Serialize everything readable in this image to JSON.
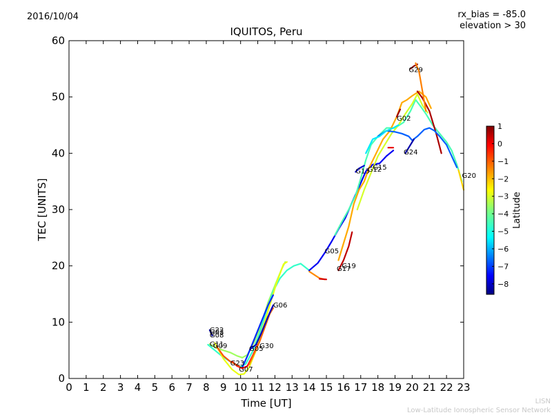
{
  "header": {
    "date": "2016/10/04",
    "title": "IQUITOS, Peru",
    "rx_bias": "rx_bias = -85.0",
    "elevation": "elevation > 30"
  },
  "footer": {
    "credit_short": "LISN",
    "credit_long": "Low-Latitude Ionospheric Sensor Network"
  },
  "colorbar": {
    "label": "Latitude",
    "ticks": [
      "1",
      "0",
      "−1",
      "−2",
      "−3",
      "−4",
      "−5",
      "−6",
      "−7",
      "−8"
    ],
    "range": [
      -8.6,
      1
    ],
    "colormap": "jet"
  },
  "chart_data": {
    "type": "scatter",
    "title": "IQUITOS, Peru",
    "xlabel": "Time [UT]",
    "ylabel": "TEC [UNITS]",
    "xlim": [
      0,
      23
    ],
    "ylim": [
      0,
      60
    ],
    "xticks": [
      "0",
      "1",
      "2",
      "3",
      "4",
      "5",
      "6",
      "7",
      "8",
      "9",
      "10",
      "11",
      "12",
      "13",
      "14",
      "15",
      "16",
      "17",
      "18",
      "19",
      "20",
      "21",
      "22",
      "23"
    ],
    "yticks": [
      "0",
      "10",
      "20",
      "30",
      "40",
      "50",
      "60"
    ],
    "grid": false,
    "satellite_labels": [
      {
        "text": "G22",
        "x": 8.2,
        "y": 8.7
      },
      {
        "text": "G03",
        "x": 8.2,
        "y": 8.3
      },
      {
        "text": "G08",
        "x": 8.2,
        "y": 7.8
      },
      {
        "text": "G11",
        "x": 8.2,
        "y": 6.2
      },
      {
        "text": "G09",
        "x": 8.4,
        "y": 5.9
      },
      {
        "text": "G23",
        "x": 9.4,
        "y": 2.8
      },
      {
        "text": "G07",
        "x": 9.9,
        "y": 1.7
      },
      {
        "text": "G05",
        "x": 10.5,
        "y": 5.4
      },
      {
        "text": "G30",
        "x": 11.1,
        "y": 5.9
      },
      {
        "text": "G06",
        "x": 11.9,
        "y": 13.1
      },
      {
        "text": "G05",
        "x": 14.9,
        "y": 22.7
      },
      {
        "text": "G17",
        "x": 15.6,
        "y": 19.6
      },
      {
        "text": "G19",
        "x": 15.9,
        "y": 20.1
      },
      {
        "text": "G13",
        "x": 16.7,
        "y": 36.9
      },
      {
        "text": "G12",
        "x": 17.4,
        "y": 37.2
      },
      {
        "text": "G15",
        "x": 17.7,
        "y": 37.6
      },
      {
        "text": "G02",
        "x": 19.1,
        "y": 46.3
      },
      {
        "text": "G24",
        "x": 19.5,
        "y": 40.3
      },
      {
        "text": "G29",
        "x": 19.8,
        "y": 54.9
      },
      {
        "text": "G20",
        "x": 22.9,
        "y": 36.1
      }
    ],
    "series": [
      {
        "color_lat": -3.5,
        "points": [
          [
            8.2,
            6.1
          ],
          [
            8.6,
            5.4
          ],
          [
            9.0,
            5.0
          ],
          [
            9.4,
            4.6
          ],
          [
            9.8,
            4.0
          ],
          [
            10.1,
            3.7
          ],
          [
            10.4,
            4.2
          ],
          [
            10.8,
            6.5
          ],
          [
            11.2,
            9.5
          ],
          [
            11.6,
            13.5
          ],
          [
            12.0,
            16.5
          ],
          [
            12.4,
            19.5
          ],
          [
            12.6,
            20.7
          ]
        ]
      },
      {
        "color_lat": -4.5,
        "points": [
          [
            8.1,
            6.0
          ],
          [
            8.5,
            5.0
          ],
          [
            8.9,
            4.0
          ],
          [
            9.3,
            3.2
          ],
          [
            9.7,
            2.5
          ],
          [
            10.0,
            2.1
          ],
          [
            10.3,
            2.6
          ],
          [
            10.7,
            4.8
          ],
          [
            11.1,
            8.0
          ],
          [
            11.5,
            12.0
          ],
          [
            11.9,
            15.5
          ],
          [
            12.3,
            17.8
          ],
          [
            12.7,
            19.2
          ],
          [
            13.1,
            20.0
          ],
          [
            13.5,
            20.4
          ],
          [
            14.0,
            19.2
          ]
        ]
      },
      {
        "color_lat": -2.8,
        "points": [
          [
            8.5,
            6.3
          ],
          [
            9.0,
            3.5
          ],
          [
            9.5,
            1.6
          ],
          [
            9.9,
            0.7
          ],
          [
            10.2,
            0.8
          ],
          [
            10.5,
            2.0
          ],
          [
            10.9,
            5.0
          ],
          [
            11.3,
            9.0
          ],
          [
            11.7,
            13.0
          ],
          [
            12.1,
            17.0
          ],
          [
            12.5,
            20.3
          ],
          [
            12.7,
            20.7
          ]
        ]
      },
      {
        "color_lat": -7.0,
        "points": [
          [
            10.1,
            2.0
          ],
          [
            10.4,
            4.0
          ],
          [
            10.8,
            7.0
          ],
          [
            11.2,
            10.0
          ],
          [
            11.6,
            13.0
          ],
          [
            11.9,
            14.8
          ]
        ]
      },
      {
        "color_lat": -8.3,
        "points": [
          [
            8.2,
            8.6
          ],
          [
            8.35,
            7.6
          ]
        ]
      },
      {
        "color_lat": -0.2,
        "points": [
          [
            9.5,
            3.0
          ],
          [
            9.8,
            2.2
          ],
          [
            10.1,
            1.8
          ],
          [
            10.4,
            2.2
          ],
          [
            10.7,
            4.0
          ],
          [
            11.0,
            6.0
          ]
        ]
      },
      {
        "color_lat": -1.0,
        "points": [
          [
            8.6,
            5.7
          ],
          [
            9.0,
            4.0
          ],
          [
            9.4,
            3.0
          ],
          [
            9.9,
            2.2
          ]
        ]
      },
      {
        "color_lat": -1.2,
        "points": [
          [
            10.5,
            2.5
          ],
          [
            10.8,
            4.5
          ],
          [
            11.1,
            6.5
          ],
          [
            11.4,
            9.0
          ],
          [
            11.7,
            11.5
          ],
          [
            11.9,
            12.5
          ]
        ]
      },
      {
        "color_lat": -8.0,
        "points": [
          [
            10.55,
            5.2
          ],
          [
            10.9,
            6.0
          ],
          [
            11.2,
            8.0
          ],
          [
            11.6,
            11.0
          ],
          [
            11.9,
            13.0
          ]
        ]
      },
      {
        "color_lat": -1.5,
        "points": [
          [
            14.0,
            19.0
          ],
          [
            14.3,
            18.4
          ],
          [
            14.6,
            17.8
          ],
          [
            14.9,
            17.6
          ]
        ]
      },
      {
        "color_lat": 0.2,
        "points": [
          [
            14.6,
            17.7
          ],
          [
            15.0,
            17.6
          ]
        ]
      },
      {
        "color_lat": -7.5,
        "points": [
          [
            14.0,
            19.2
          ],
          [
            14.5,
            20.5
          ],
          [
            14.9,
            22.3
          ],
          [
            15.3,
            24.3
          ],
          [
            15.7,
            26.5
          ],
          [
            16.1,
            28.5
          ],
          [
            16.5,
            31.3
          ],
          [
            16.9,
            34.0
          ],
          [
            17.3,
            36.8
          ],
          [
            17.7,
            38.0
          ],
          [
            18.1,
            38.2
          ],
          [
            18.5,
            39.5
          ],
          [
            18.9,
            40.5
          ]
        ]
      },
      {
        "color_lat": -4.3,
        "points": [
          [
            15.5,
            25.5
          ],
          [
            15.9,
            27.8
          ],
          [
            16.3,
            30.0
          ],
          [
            16.7,
            32.5
          ],
          [
            17.0,
            35.5
          ],
          [
            17.3,
            38.8
          ],
          [
            17.6,
            41.5
          ],
          [
            18.0,
            43.0
          ],
          [
            18.5,
            44.5
          ],
          [
            19.0,
            44.5
          ],
          [
            19.5,
            45.5
          ],
          [
            19.9,
            47.5
          ],
          [
            20.2,
            49.5
          ],
          [
            20.5,
            48.3
          ],
          [
            20.8,
            47.0
          ],
          [
            21.2,
            45.0
          ],
          [
            21.6,
            43.5
          ],
          [
            22.0,
            42.0
          ],
          [
            22.3,
            40.5
          ],
          [
            22.6,
            38.0
          ],
          [
            22.9,
            35.0
          ]
        ]
      },
      {
        "color_lat": -3.0,
        "points": [
          [
            16.8,
            30.0
          ],
          [
            17.2,
            33.5
          ],
          [
            17.6,
            36.5
          ],
          [
            18.0,
            39.5
          ],
          [
            18.4,
            41.5
          ],
          [
            18.8,
            43.5
          ],
          [
            19.2,
            45.0
          ],
          [
            19.6,
            47.0
          ],
          [
            20.0,
            48.8
          ],
          [
            20.3,
            50.5
          ],
          [
            20.6,
            48.5
          ],
          [
            20.9,
            47.2
          ]
        ]
      },
      {
        "color_lat": -1.8,
        "points": [
          [
            15.7,
            21.0
          ],
          [
            16.0,
            24.0
          ],
          [
            16.3,
            27.0
          ],
          [
            16.6,
            31.0
          ],
          [
            16.9,
            33.5
          ],
          [
            17.2,
            35.0
          ],
          [
            17.5,
            37.5
          ],
          [
            17.9,
            40.0
          ],
          [
            18.3,
            42.5
          ],
          [
            18.7,
            44.0
          ],
          [
            19.1,
            46.5
          ],
          [
            19.4,
            49.0
          ],
          [
            19.7,
            49.5
          ],
          [
            20.0,
            50.2
          ],
          [
            20.4,
            51.0
          ],
          [
            20.8,
            50.0
          ],
          [
            21.1,
            48.0
          ]
        ]
      },
      {
        "color_lat": 0.4,
        "points": [
          [
            15.7,
            19.2
          ],
          [
            16.0,
            21.0
          ],
          [
            16.3,
            23.5
          ],
          [
            16.5,
            26.0
          ]
        ]
      },
      {
        "color_lat": 0.0,
        "points": [
          [
            18.6,
            41.0
          ],
          [
            18.9,
            41.0
          ]
        ]
      },
      {
        "color_lat": 0.6,
        "points": [
          [
            20.3,
            51.0
          ],
          [
            20.6,
            49.8
          ],
          [
            21.0,
            47.5
          ],
          [
            21.4,
            43.5
          ],
          [
            21.7,
            40.0
          ]
        ]
      },
      {
        "color_lat": -6.5,
        "points": [
          [
            18.0,
            43.0
          ],
          [
            18.5,
            44.0
          ],
          [
            19.0,
            43.8
          ],
          [
            19.4,
            43.5
          ],
          [
            19.8,
            43.0
          ],
          [
            20.0,
            42.3
          ],
          [
            20.3,
            43.0
          ],
          [
            20.7,
            44.2
          ],
          [
            21.0,
            44.5
          ],
          [
            21.3,
            44.0
          ],
          [
            21.6,
            43.0
          ],
          [
            22.0,
            41.5
          ],
          [
            22.3,
            39.5
          ],
          [
            22.6,
            37.5
          ]
        ]
      },
      {
        "color_lat": -5.2,
        "points": [
          [
            17.3,
            40.0
          ],
          [
            17.7,
            42.5
          ],
          [
            18.1,
            43.0
          ],
          [
            18.5,
            44.0
          ],
          [
            18.9,
            44.5
          ],
          [
            19.2,
            45.0
          ]
        ]
      },
      {
        "color_lat": -8.2,
        "points": [
          [
            19.6,
            40.0
          ],
          [
            19.9,
            41.5
          ],
          [
            20.1,
            42.5
          ]
        ]
      },
      {
        "color_lat": -7.8,
        "points": [
          [
            16.7,
            36.7
          ],
          [
            16.9,
            37.3
          ],
          [
            17.2,
            37.8
          ]
        ]
      },
      {
        "color_lat": 0.9,
        "points": [
          [
            19.9,
            55.0
          ],
          [
            20.1,
            55.5
          ],
          [
            20.3,
            55.8
          ]
        ]
      },
      {
        "color_lat": -1.4,
        "points": [
          [
            20.2,
            56.0
          ],
          [
            20.4,
            54.5
          ],
          [
            20.6,
            51.0
          ],
          [
            20.8,
            47.5
          ]
        ]
      },
      {
        "color_lat": -2.2,
        "points": [
          [
            22.7,
            37.0
          ],
          [
            23.0,
            33.5
          ]
        ]
      },
      {
        "color_lat": 0.7,
        "points": [
          [
            19.1,
            46.5
          ],
          [
            19.3,
            47.8
          ]
        ]
      }
    ]
  }
}
